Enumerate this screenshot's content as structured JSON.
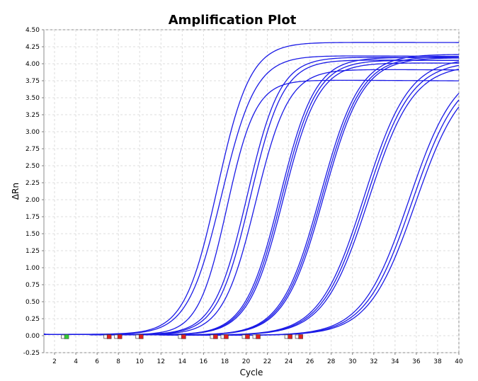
{
  "chart_data": {
    "type": "line",
    "title": "Amplification Plot",
    "xlabel": "Cycle",
    "ylabel": "ΔRn",
    "xlim": [
      1,
      40
    ],
    "ylim": [
      -0.25,
      4.5
    ],
    "grid": true,
    "legend": "none",
    "x_ticks": [
      2,
      4,
      6,
      8,
      10,
      12,
      14,
      16,
      18,
      20,
      22,
      24,
      26,
      28,
      30,
      32,
      34,
      36,
      38,
      40
    ],
    "y_ticks": [
      "-0.25",
      "0.00",
      "0.25",
      "0.50",
      "0.75",
      "1.00",
      "1.25",
      "1.50",
      "1.75",
      "2.00",
      "2.25",
      "2.50",
      "2.75",
      "3.00",
      "3.25",
      "3.50",
      "3.75",
      "4.00",
      "4.25",
      "4.50"
    ],
    "line_color": "#1a1ae6",
    "marker_colors": {
      "threshold_start": "#33cc33",
      "threshold_ct": "#e02020"
    },
    "series": [
      {
        "midpoint": 17.3,
        "slope": 1.55,
        "plateau": 4.3,
        "baseline_drift": 0.0006,
        "step_plateau": true
      },
      {
        "midpoint": 17.7,
        "slope": 1.6,
        "plateau": 4.12
      },
      {
        "midpoint": 18.2,
        "slope": 1.35,
        "plateau": 3.76
      },
      {
        "midpoint": 20.1,
        "slope": 1.55,
        "plateau": 4.1
      },
      {
        "midpoint": 20.4,
        "slope": 1.55,
        "plateau": 4.06
      },
      {
        "midpoint": 20.9,
        "slope": 1.55,
        "plateau": 3.92
      },
      {
        "midpoint": 23.2,
        "slope": 1.65,
        "plateau": 4.1
      },
      {
        "midpoint": 23.35,
        "slope": 1.65,
        "plateau": 4.06
      },
      {
        "midpoint": 23.5,
        "slope": 1.65,
        "plateau": 4.02
      },
      {
        "midpoint": 27.0,
        "slope": 1.85,
        "plateau": 4.15
      },
      {
        "midpoint": 27.15,
        "slope": 1.85,
        "plateau": 4.12
      },
      {
        "midpoint": 27.3,
        "slope": 1.85,
        "plateau": 4.1
      },
      {
        "midpoint": 31.1,
        "slope": 2.1,
        "plateau": 4.1
      },
      {
        "midpoint": 31.3,
        "slope": 2.1,
        "plateau": 4.05
      },
      {
        "midpoint": 31.5,
        "slope": 2.1,
        "plateau": 4.0
      },
      {
        "midpoint": 35.3,
        "slope": 2.2,
        "plateau": 4.0
      },
      {
        "midpoint": 35.6,
        "slope": 2.2,
        "plateau": 3.95
      },
      {
        "midpoint": 35.9,
        "slope": 2.2,
        "plateau": 3.9
      }
    ],
    "markers": [
      {
        "x": 3.0,
        "y": -0.02,
        "kind": "threshold_start"
      },
      {
        "x": 7.0,
        "y": -0.02,
        "kind": "threshold_ct"
      },
      {
        "x": 8.0,
        "y": -0.02,
        "kind": "threshold_ct"
      },
      {
        "x": 10.0,
        "y": -0.02,
        "kind": "threshold_ct"
      },
      {
        "x": 14.0,
        "y": -0.02,
        "kind": "threshold_ct"
      },
      {
        "x": 17.0,
        "y": -0.02,
        "kind": "threshold_ct"
      },
      {
        "x": 18.0,
        "y": -0.02,
        "kind": "threshold_ct"
      },
      {
        "x": 20.0,
        "y": -0.02,
        "kind": "threshold_ct"
      },
      {
        "x": 21.0,
        "y": -0.02,
        "kind": "threshold_ct"
      },
      {
        "x": 24.0,
        "y": -0.02,
        "kind": "threshold_ct"
      },
      {
        "x": 25.0,
        "y": -0.02,
        "kind": "threshold_ct"
      }
    ]
  }
}
